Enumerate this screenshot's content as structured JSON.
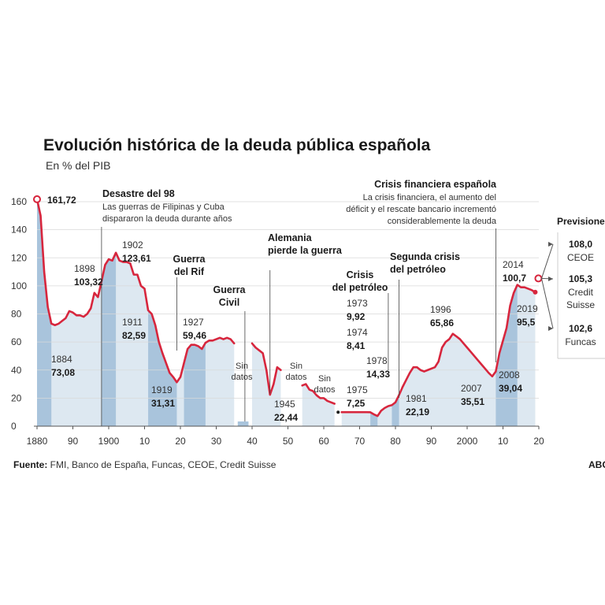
{
  "chart_data": {
    "type": "line",
    "title": "Evolución histórica de la deuda pública española",
    "subtitle": "En % del PIB",
    "xlim": [
      1880,
      2020
    ],
    "ylim": [
      0,
      160
    ],
    "y_ticks": [
      "0",
      "20",
      "40",
      "60",
      "80",
      "100",
      "120",
      "140",
      "160"
    ],
    "x_ticks": [
      "1880",
      "90",
      "1900",
      "10",
      "20",
      "30",
      "40",
      "50",
      "60",
      "70",
      "80",
      "90",
      "2000",
      "10",
      "20"
    ],
    "series": [
      {
        "segments": [
          [
            [
              1880,
              161.72
            ],
            [
              1881,
              150
            ],
            [
              1882,
              110
            ],
            [
              1883,
              85
            ],
            [
              1884,
              73.08
            ],
            [
              1885,
              72
            ],
            [
              1886,
              73
            ],
            [
              1887,
              75
            ],
            [
              1888,
              77
            ],
            [
              1889,
              82
            ],
            [
              1890,
              81
            ],
            [
              1891,
              79
            ],
            [
              1892,
              79
            ],
            [
              1893,
              78
            ],
            [
              1894,
              80
            ],
            [
              1895,
              84
            ],
            [
              1896,
              95
            ],
            [
              1897,
              92
            ],
            [
              1898,
              103.32
            ],
            [
              1899,
              115
            ],
            [
              1900,
              119
            ],
            [
              1901,
              118
            ],
            [
              1902,
              123.61
            ],
            [
              1903,
              118
            ],
            [
              1904,
              117
            ],
            [
              1905,
              117
            ],
            [
              1906,
              116
            ],
            [
              1907,
              108
            ],
            [
              1908,
              108
            ],
            [
              1909,
              100
            ],
            [
              1910,
              98
            ],
            [
              1911,
              82.59
            ],
            [
              1912,
              80
            ],
            [
              1913,
              72
            ],
            [
              1914,
              60
            ],
            [
              1915,
              52
            ],
            [
              1916,
              45
            ],
            [
              1917,
              38
            ],
            [
              1918,
              35
            ],
            [
              1919,
              31.31
            ],
            [
              1920,
              35
            ],
            [
              1921,
              45
            ],
            [
              1922,
              55
            ],
            [
              1923,
              58
            ],
            [
              1924,
              58
            ],
            [
              1925,
              57
            ],
            [
              1926,
              55
            ],
            [
              1927,
              59.46
            ],
            [
              1928,
              61
            ],
            [
              1929,
              61
            ],
            [
              1930,
              62
            ],
            [
              1931,
              63
            ],
            [
              1932,
              62
            ],
            [
              1933,
              63
            ],
            [
              1934,
              62
            ],
            [
              1935,
              59
            ]
          ],
          [
            [
              1940,
              59
            ],
            [
              1941,
              56
            ],
            [
              1942,
              54
            ],
            [
              1943,
              52
            ],
            [
              1944,
              40
            ],
            [
              1945,
              22.44
            ],
            [
              1946,
              30
            ],
            [
              1947,
              42
            ],
            [
              1948,
              40
            ]
          ],
          [
            [
              1954,
              29
            ],
            [
              1955,
              30
            ],
            [
              1956,
              26
            ],
            [
              1957,
              25
            ],
            [
              1958,
              22
            ],
            [
              1959,
              20
            ],
            [
              1960,
              20
            ],
            [
              1961,
              18
            ],
            [
              1962,
              17
            ],
            [
              1963,
              16
            ]
          ],
          [
            [
              1965,
              10
            ],
            [
              1966,
              10
            ],
            [
              1967,
              10
            ],
            [
              1968,
              10
            ],
            [
              1969,
              10
            ],
            [
              1970,
              10
            ],
            [
              1971,
              10
            ],
            [
              1972,
              10
            ],
            [
              1973,
              9.92
            ],
            [
              1974,
              8.41
            ],
            [
              1975,
              7.25
            ],
            [
              1976,
              11
            ],
            [
              1977,
              13
            ],
            [
              1978,
              14.33
            ],
            [
              1979,
              15
            ],
            [
              1980,
              17
            ],
            [
              1981,
              22.19
            ],
            [
              1982,
              28
            ],
            [
              1983,
              33
            ],
            [
              1984,
              38
            ],
            [
              1985,
              42
            ],
            [
              1986,
              42
            ],
            [
              1987,
              40
            ],
            [
              1988,
              39
            ],
            [
              1989,
              40
            ],
            [
              1990,
              41
            ],
            [
              1991,
              42
            ],
            [
              1992,
              46
            ],
            [
              1993,
              56
            ],
            [
              1994,
              60
            ],
            [
              1995,
              62
            ],
            [
              1996,
              65.86
            ],
            [
              1997,
              64
            ],
            [
              1998,
              62
            ],
            [
              1999,
              59
            ],
            [
              2000,
              56
            ],
            [
              2001,
              53
            ],
            [
              2002,
              50
            ],
            [
              2003,
              47
            ],
            [
              2004,
              44
            ],
            [
              2005,
              41
            ],
            [
              2006,
              38
            ],
            [
              2007,
              35.51
            ],
            [
              2008,
              39.04
            ],
            [
              2009,
              52
            ],
            [
              2010,
              61
            ],
            [
              2011,
              70
            ],
            [
              2012,
              86
            ],
            [
              2013,
              95
            ],
            [
              2014,
              100.7
            ],
            [
              2015,
              99
            ],
            [
              2016,
              99
            ],
            [
              2017,
              98
            ],
            [
              2018,
              97
            ],
            [
              2019,
              95.5
            ]
          ]
        ]
      }
    ],
    "labels": [
      {
        "year": "1880",
        "value": "161,72",
        "x": 1880,
        "y": 161.72
      },
      {
        "year": "1884",
        "value": "73,08",
        "x": 1884,
        "y": 73.08
      },
      {
        "year": "1898",
        "value": "103,32",
        "x": 1898,
        "y": 103.32
      },
      {
        "year": "1902",
        "value": "123,61",
        "x": 1902,
        "y": 123.61
      },
      {
        "year": "1911",
        "value": "82,59",
        "x": 1911,
        "y": 82.59
      },
      {
        "year": "1919",
        "value": "31,31",
        "x": 1919,
        "y": 31.31
      },
      {
        "year": "1927",
        "value": "59,46",
        "x": 1927,
        "y": 59.46
      },
      {
        "year": "1945",
        "value": "22,44",
        "x": 1945,
        "y": 22.44
      },
      {
        "year": "1973",
        "value": "9,92",
        "x": 1973,
        "y": 9.92
      },
      {
        "year": "1974",
        "value": "8,41",
        "x": 1974,
        "y": 8.41
      },
      {
        "year": "1975",
        "value": "7,25",
        "x": 1975,
        "y": 7.25
      },
      {
        "year": "1978",
        "value": "14,33",
        "x": 1978,
        "y": 14.33
      },
      {
        "year": "1981",
        "value": "22,19",
        "x": 1981,
        "y": 22.19
      },
      {
        "year": "1996",
        "value": "65,86",
        "x": 1996,
        "y": 65.86
      },
      {
        "year": "2007",
        "value": "35,51",
        "x": 2007,
        "y": 35.51
      },
      {
        "year": "2008",
        "value": "39,04",
        "x": 2008,
        "y": 39.04
      },
      {
        "year": "2014",
        "value": "100,7",
        "x": 2014,
        "y": 100.7
      },
      {
        "year": "2019",
        "value": "95,5",
        "x": 2019,
        "y": 95.5
      }
    ],
    "annotations": [
      {
        "title": [
          "Desastre del 98"
        ],
        "note": [
          "Las guerras de Filipinas y Cuba",
          "dispararon la deuda durante años"
        ],
        "x": 1898
      },
      {
        "title": [
          "Guerra",
          "del Rif"
        ],
        "x": 1921
      },
      {
        "title": [
          "Guerra",
          "Civil"
        ],
        "x": 1938
      },
      {
        "title": [
          "Alemania",
          "pierde la guerra"
        ],
        "x": 1945
      },
      {
        "title": [
          "Crisis",
          "del petróleo"
        ],
        "x": 1973
      },
      {
        "title": [
          "Segunda crisis",
          "del petróleo"
        ],
        "x": 1979
      },
      {
        "title": [
          "Crisis financiera española"
        ],
        "note": [
          "La crisis financiera, el aumento del",
          "déficit y el rescate bancario incrementó",
          "considerablemente la deuda"
        ],
        "x": 2008
      }
    ],
    "no_data": [
      {
        "text": [
          "Sin",
          "datos"
        ],
        "from": 1936,
        "to": 1939
      },
      {
        "text": [
          "Sin",
          "datos"
        ],
        "from": 1949,
        "to": 1953
      },
      {
        "text": [
          "Sin",
          "datos"
        ],
        "from": 1963,
        "to": 1965
      }
    ],
    "shaded_periods": [
      [
        1880,
        1884
      ],
      [
        1898,
        1902
      ],
      [
        1911,
        1919
      ],
      [
        1921,
        1927
      ],
      [
        1936,
        1939
      ],
      [
        1973,
        1975
      ],
      [
        1979,
        1981
      ],
      [
        2008,
        2014
      ]
    ],
    "forecasts": {
      "title": "Previsiones",
      "items": [
        {
          "value": "108,0",
          "source": [
            "CEOE"
          ],
          "y": 108.0
        },
        {
          "value": "105,3",
          "source": [
            "Credit",
            "Suisse"
          ],
          "y": 105.3
        },
        {
          "value": "102,6",
          "source": [
            "Funcas"
          ],
          "y": 102.6
        }
      ]
    },
    "line_color": "#d7263d",
    "area_color": "#dde8f1",
    "band_color": "#a9c4dc"
  },
  "footer": {
    "source_label": "Fuente:",
    "source_text": " FMI, Banco de España, Funcas, CEOE, Credit Suisse",
    "brand": "ABC"
  }
}
